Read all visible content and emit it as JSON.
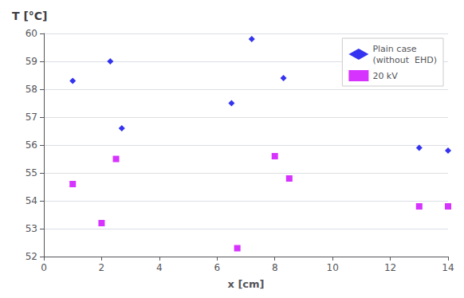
{
  "chart_data": {
    "type": "scatter",
    "title": "T [°C]",
    "xlabel": "x [cm]",
    "series": [
      {
        "name": "Plain case\n(without  EHD)",
        "color": "#0000EE",
        "marker": "diamond",
        "x": [
          1.0,
          2.3,
          2.7,
          6.5,
          7.2,
          8.3,
          13.0,
          14.0
        ],
        "values": [
          58.3,
          59.0,
          56.6,
          57.5,
          59.8,
          58.4,
          55.9,
          55.8
        ]
      },
      {
        "name": "20 kV",
        "color": "#CC00FF",
        "marker": "square",
        "x": [
          1.0,
          2.0,
          2.5,
          6.7,
          8.0,
          8.5,
          13.0,
          14.0
        ],
        "values": [
          54.6,
          53.2,
          55.5,
          52.3,
          55.6,
          54.8,
          53.8,
          53.8
        ]
      }
    ],
    "xlim": [
      0,
      14
    ],
    "xticks": [
      0,
      2,
      4,
      6,
      8,
      10,
      12,
      14
    ],
    "ylim": [
      52,
      60
    ],
    "yticks": [
      52,
      53,
      54,
      55,
      56,
      57,
      58,
      59,
      60
    ],
    "grid": "y",
    "legend": "upper right"
  }
}
